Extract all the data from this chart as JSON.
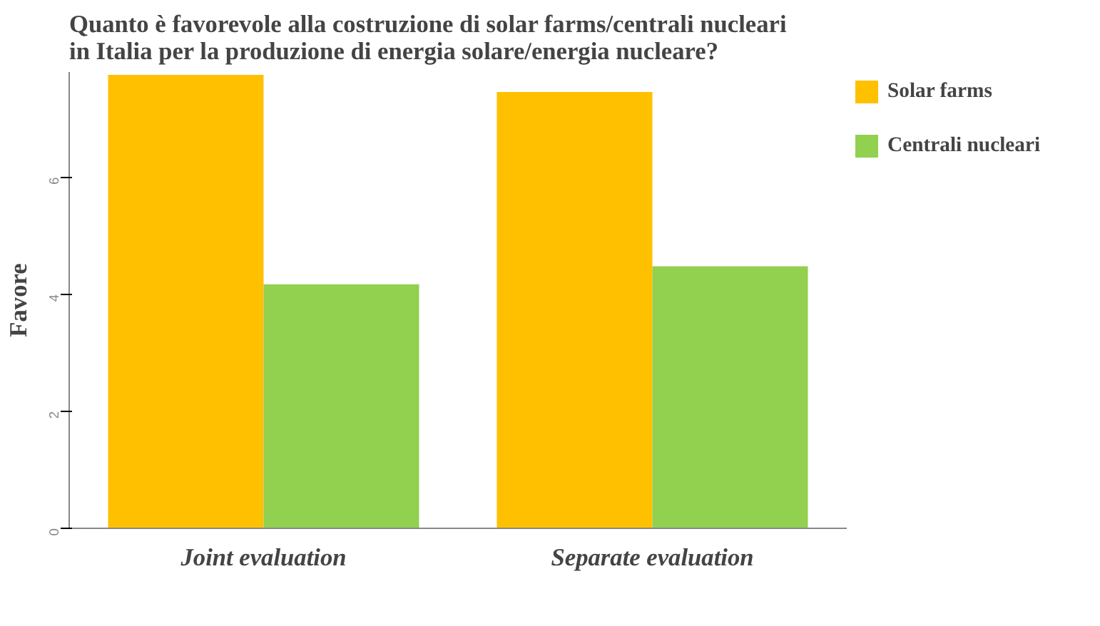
{
  "chart_data": {
    "type": "bar",
    "title": "Quanto è favorevole alla costruzione di solar farms/centrali nucleari\nin Italia per la produzione di energia solare/energia nucleare?",
    "ylabel": "Favore",
    "categories": [
      "Joint evaluation",
      "Separate evaluation"
    ],
    "series": [
      {
        "name": "Solar farms",
        "color": "#ffc000",
        "values": [
          7.75,
          7.46
        ]
      },
      {
        "name": "Centrali nucleari",
        "color": "#92d050",
        "values": [
          4.17,
          4.48
        ]
      }
    ],
    "ylim": [
      0,
      7.8
    ],
    "yticks": [
      0,
      2,
      4,
      6
    ],
    "grid": false,
    "legend": "top right"
  }
}
